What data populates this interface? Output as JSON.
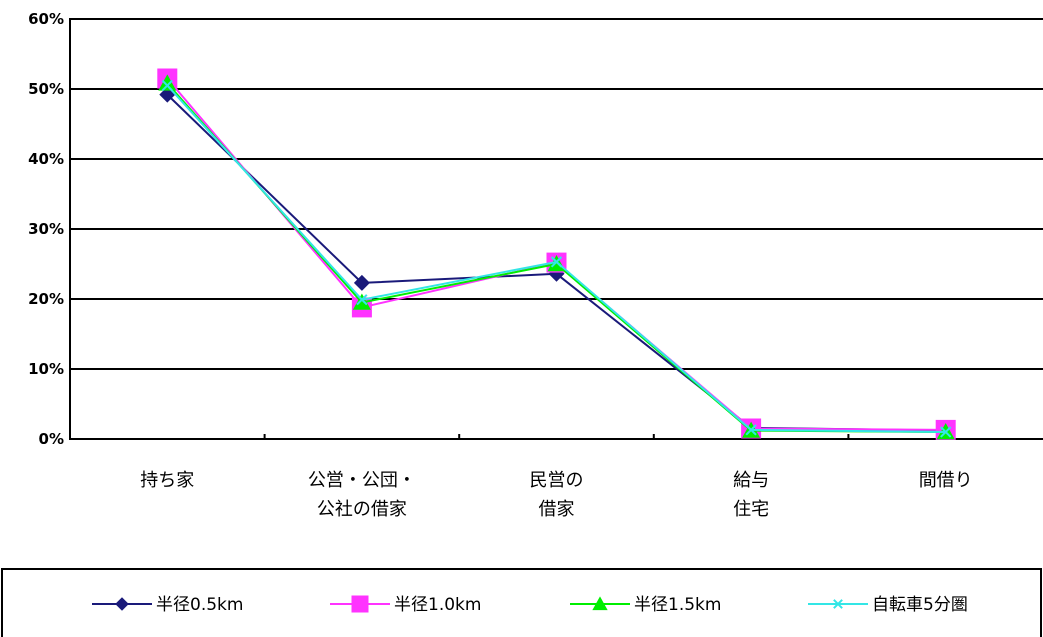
{
  "chart_data": {
    "type": "line",
    "title": "",
    "xlabel": "",
    "ylabel": "",
    "categories": [
      [
        "持ち家"
      ],
      [
        "公営・公団・",
        "公社の借家"
      ],
      [
        "民営の",
        "借家"
      ],
      [
        "給与",
        "住宅"
      ],
      [
        "間借り"
      ]
    ],
    "y_ticks": [
      "0%",
      "10%",
      "20%",
      "30%",
      "40%",
      "50%",
      "60%"
    ],
    "ylim": [
      0,
      60
    ],
    "grid": true,
    "legend_position": "bottom",
    "series": [
      {
        "name": "半径0.5km",
        "marker": "diamond",
        "color": "#1a1a7a",
        "values": [
          49.2,
          22.3,
          23.6,
          1.6,
          1.2
        ]
      },
      {
        "name": "半径1.0km",
        "marker": "square",
        "color": "#ff33ff",
        "values": [
          51.5,
          18.8,
          25.2,
          1.5,
          1.3
        ]
      },
      {
        "name": "半径1.5km",
        "marker": "triangle",
        "color": "#00ee00",
        "values": [
          50.8,
          19.5,
          25.0,
          1.2,
          1.0
        ]
      },
      {
        "name": "自転車5分圏",
        "marker": "x",
        "color": "#33e6e6",
        "values": [
          50.5,
          19.9,
          25.3,
          1.3,
          1.0
        ]
      }
    ]
  }
}
